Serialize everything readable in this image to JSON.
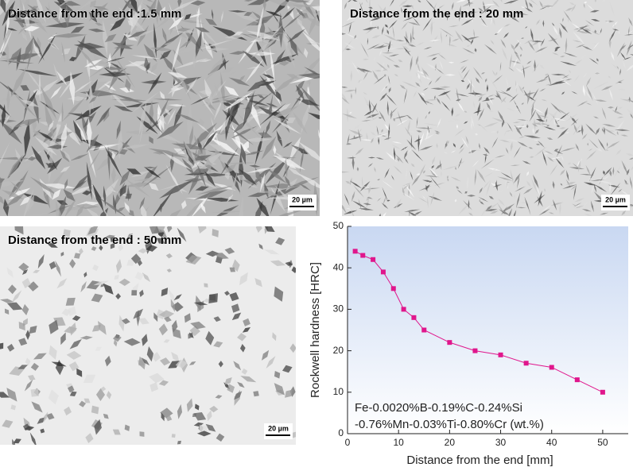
{
  "micrographs": [
    {
      "label": "Distance from the end :1.5 mm",
      "scale_bar": "20 µm"
    },
    {
      "label": "Distance from the end : 20 mm",
      "scale_bar": "20 µm"
    },
    {
      "label": "Distance from the end : 50 mm",
      "scale_bar": "20 µm"
    }
  ],
  "chart_data": {
    "type": "line",
    "x": [
      1.5,
      3,
      5,
      7,
      9,
      11,
      13,
      15,
      20,
      25,
      30,
      35,
      40,
      45,
      50
    ],
    "values": [
      44,
      43,
      42,
      39,
      35,
      30,
      28,
      25,
      22,
      20,
      19,
      17,
      16,
      13,
      10
    ],
    "color": "#e0168c",
    "xlim": [
      0,
      55
    ],
    "ylim": [
      0,
      50
    ],
    "xticks": [
      0,
      10,
      20,
      30,
      40,
      50
    ],
    "yticks": [
      0,
      10,
      20,
      30,
      40,
      50
    ],
    "xlabel": "Distance from the end [mm]",
    "ylabel": "Rockwell hardness [HRC]",
    "annotation": [
      "Fe-0.0020%B-0.19%C-0.24%Si",
      "-0.76%Mn-0.03%Ti-0.80%Cr (wt.%)"
    ]
  }
}
